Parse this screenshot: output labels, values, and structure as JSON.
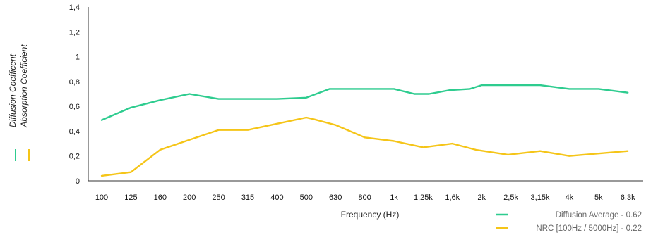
{
  "chart_data": {
    "type": "line",
    "title": "",
    "xlabel": "Frequency (Hz)",
    "ylabels": [
      "Diffusion Coefficent",
      "Absorption Coefficient"
    ],
    "categories": [
      "100",
      "125",
      "160",
      "200",
      "250",
      "315",
      "400",
      "500",
      "630",
      "800",
      "1k",
      "1,25k",
      "1,6k",
      "2k",
      "2,5k",
      "3,15k",
      "4k",
      "5k",
      "6,3k"
    ],
    "y_ticks": [
      "0",
      "0,2",
      "0,4",
      "0,6",
      "0,8",
      "1",
      "1,2",
      "1,4"
    ],
    "ylim": [
      0,
      1.4
    ],
    "grid": false,
    "legend_position": "bottom-right",
    "series": [
      {
        "name": "Diffusion Average - 0.62",
        "color": "#2ecc8f",
        "points": [
          [
            0,
            0.49
          ],
          [
            1,
            0.59
          ],
          [
            2,
            0.65
          ],
          [
            3,
            0.7
          ],
          [
            4,
            0.66
          ],
          [
            5,
            0.66
          ],
          [
            6,
            0.66
          ],
          [
            7,
            0.67
          ],
          [
            7.8,
            0.74
          ],
          [
            8.5,
            0.74
          ],
          [
            10,
            0.74
          ],
          [
            10.7,
            0.7
          ],
          [
            11.2,
            0.7
          ],
          [
            11.9,
            0.73
          ],
          [
            12.6,
            0.74
          ],
          [
            13,
            0.77
          ],
          [
            14,
            0.77
          ],
          [
            15,
            0.77
          ],
          [
            16,
            0.74
          ],
          [
            17,
            0.74
          ],
          [
            18,
            0.71
          ]
        ]
      },
      {
        "name": "NRC [100Hz / 5000Hz] - 0.22",
        "color": "#f5c518",
        "points": [
          [
            0,
            0.04
          ],
          [
            1,
            0.07
          ],
          [
            2,
            0.25
          ],
          [
            3,
            0.33
          ],
          [
            4,
            0.41
          ],
          [
            5,
            0.41
          ],
          [
            6,
            0.46
          ],
          [
            7,
            0.51
          ],
          [
            7.2,
            0.5
          ],
          [
            8,
            0.45
          ],
          [
            9,
            0.35
          ],
          [
            10,
            0.32
          ],
          [
            11,
            0.27
          ],
          [
            12,
            0.3
          ],
          [
            12.8,
            0.25
          ],
          [
            13.9,
            0.21
          ],
          [
            15,
            0.24
          ],
          [
            16,
            0.2
          ],
          [
            17,
            0.22
          ],
          [
            18,
            0.24
          ]
        ]
      }
    ]
  }
}
